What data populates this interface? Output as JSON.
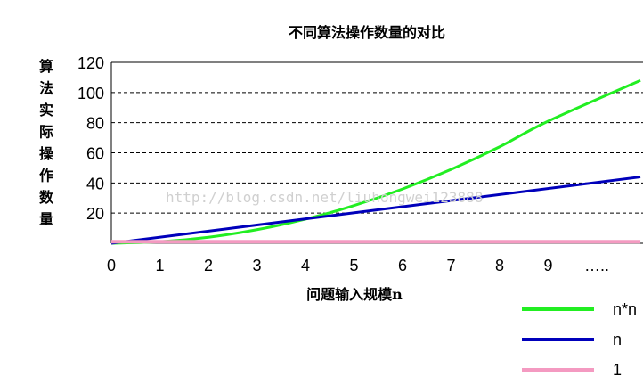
{
  "chart_data": {
    "type": "line",
    "title": "不同算法操作数量的对比",
    "xlabel": "问题输入规模n",
    "ylabel": "算法实际操作数量",
    "x_ticks": [
      "0",
      "1",
      "2",
      "3",
      "4",
      "5",
      "6",
      "7",
      "8",
      "9",
      "….."
    ],
    "y_ticks": [
      20,
      40,
      60,
      80,
      100,
      120
    ],
    "ylim": [
      0,
      120
    ],
    "xlim": [
      0,
      11
    ],
    "grid": "horizontal dashed",
    "legend_position": "bottom-right",
    "series": [
      {
        "name": "n*n",
        "color": "#22ee22",
        "x": [
          0,
          1,
          2,
          3,
          4,
          5,
          6,
          7,
          8,
          9,
          10.9
        ],
        "y": [
          0,
          1,
          4,
          9,
          16,
          25,
          36,
          49,
          64,
          81,
          108
        ]
      },
      {
        "name": "n",
        "color": "#0000bb",
        "x": [
          0,
          10.9
        ],
        "y": [
          0,
          44
        ]
      },
      {
        "name": "1",
        "color": "#f49ac1",
        "x": [
          0,
          10.9
        ],
        "y": [
          1,
          1
        ]
      }
    ]
  },
  "watermark": "http://blog.csdn.net/liuhongwei123888"
}
